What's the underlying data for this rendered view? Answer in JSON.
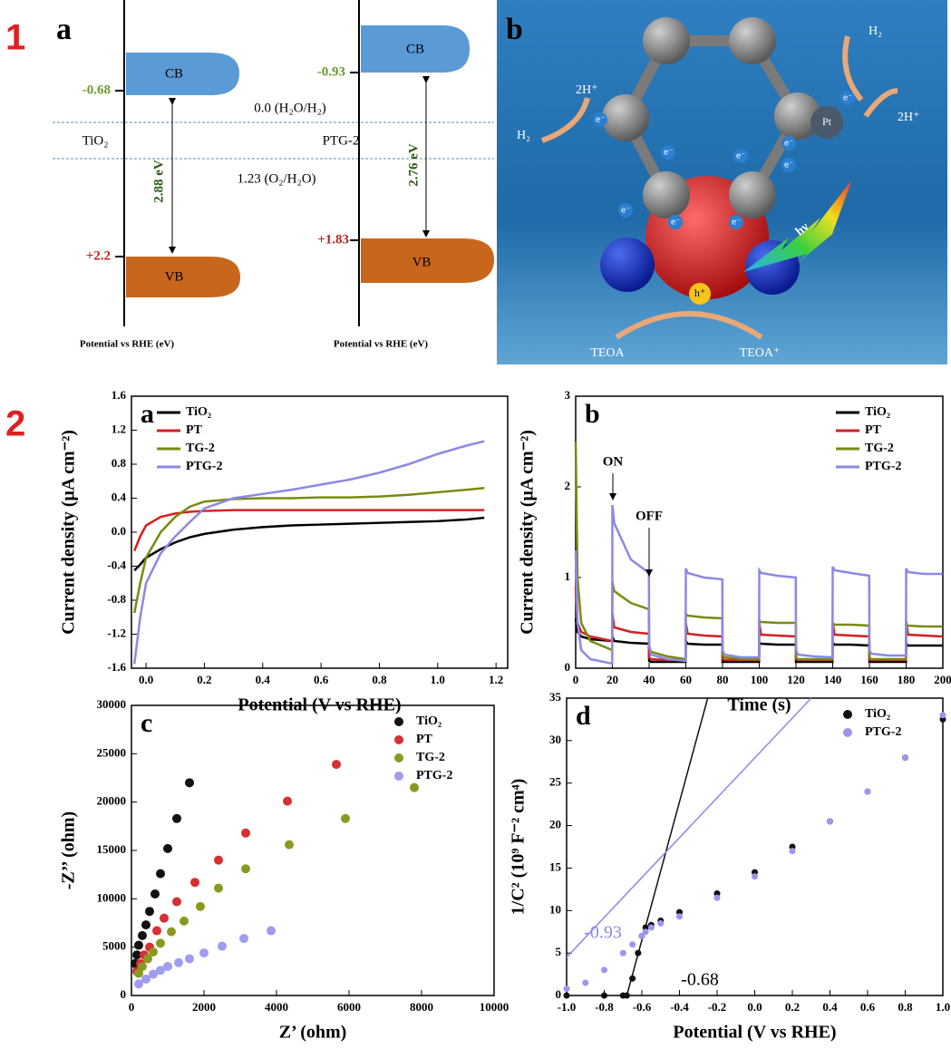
{
  "figure1": {
    "number": "1",
    "panel_a": {
      "label": "a",
      "materials": [
        {
          "name": "TiO₂",
          "cb_label": "CB",
          "vb_label": "VB",
          "cb_potential": "-0.68",
          "vb_potential": "+2.2",
          "gap": "2.88 eV",
          "axis_label": "Potential vs RHE (eV)"
        },
        {
          "name": "PTG-2",
          "cb_label": "CB",
          "vb_label": "VB",
          "cb_potential": "-0.93",
          "vb_potential": "+1.83",
          "gap": "2.76 eV",
          "axis_label": "Potential vs RHE (eV)"
        }
      ],
      "levels": [
        "0.0 (H₂O/H₂)",
        "1.23 (O₂/H₂O)"
      ]
    },
    "panel_b": {
      "label": "b",
      "proton": "2H⁺",
      "hydrogen": "H₂",
      "cocatalyst": "Pt",
      "photon": "hν",
      "hole": "h⁺",
      "donor": "TEOA",
      "donor_oxidized": "TEOA⁺",
      "electron": "e⁻"
    }
  },
  "figure2": {
    "number": "2"
  },
  "chart_data": [
    {
      "type": "line",
      "label": "a",
      "x_label": "Potential (V vs RHE)",
      "y_label": "Current density (μA cm⁻²)",
      "x": [
        -0.04,
        -0.02,
        0,
        0.05,
        0.1,
        0.15,
        0.2,
        0.3,
        0.4,
        0.5,
        0.6,
        0.7,
        0.8,
        0.9,
        1.0,
        1.1,
        1.16
      ],
      "series": [
        {
          "name": "TiO₂",
          "color": "#000000",
          "values": [
            -0.45,
            -0.38,
            -0.3,
            -0.2,
            -0.12,
            -0.06,
            -0.02,
            0.03,
            0.06,
            0.08,
            0.09,
            0.1,
            0.11,
            0.12,
            0.13,
            0.15,
            0.17
          ]
        },
        {
          "name": "PT",
          "color": "#d42020",
          "values": [
            -0.22,
            -0.05,
            0.08,
            0.18,
            0.22,
            0.24,
            0.25,
            0.26,
            0.26,
            0.26,
            0.26,
            0.26,
            0.26,
            0.26,
            0.26,
            0.26,
            0.26
          ]
        },
        {
          "name": "TG-2",
          "color": "#7a8a10",
          "values": [
            -0.95,
            -0.6,
            -0.3,
            0.0,
            0.18,
            0.3,
            0.36,
            0.39,
            0.4,
            0.4,
            0.41,
            0.41,
            0.42,
            0.44,
            0.47,
            0.5,
            0.52
          ]
        },
        {
          "name": "PTG-2",
          "color": "#8c88e8",
          "values": [
            -1.55,
            -1.0,
            -0.6,
            -0.25,
            -0.05,
            0.12,
            0.28,
            0.4,
            0.45,
            0.5,
            0.56,
            0.62,
            0.7,
            0.8,
            0.92,
            1.02,
            1.07
          ]
        }
      ],
      "xlim": [
        -0.05,
        1.24
      ],
      "xticks": [
        {
          "value": 0,
          "label": "0.0"
        },
        0.2,
        0.4,
        0.6,
        0.8,
        {
          "value": 1,
          "label": "1.0"
        },
        1.2
      ],
      "ylim": [
        -1.6,
        1.6
      ],
      "yticks": [
        -1.6,
        -1.2,
        -0.8,
        -0.4,
        {
          "value": 0,
          "label": "0.0"
        },
        0.4,
        0.8,
        1.2,
        1.6
      ],
      "legend": "upper left",
      "annotations": []
    },
    {
      "type": "line",
      "label": "b",
      "x_label": "Time (s)",
      "y_label": "Current density (μA cm⁻²)",
      "x": [
        0,
        1,
        3,
        8,
        19.9,
        20,
        21,
        30,
        39.9,
        40,
        41,
        50,
        59.9,
        60,
        61,
        70,
        79.9,
        80,
        81,
        90,
        99.9,
        100,
        101,
        110,
        119.9,
        120,
        121,
        130,
        139.9,
        140,
        141,
        150,
        159.9,
        160,
        161,
        170,
        179.9,
        180,
        181,
        190,
        199.9
      ],
      "series": [
        {
          "name": "TiO₂",
          "color": "#000000",
          "values": [
            0.55,
            0.4,
            0.35,
            0.32,
            0.3,
            0.35,
            0.3,
            0.28,
            0.27,
            0.08,
            0.07,
            0.07,
            0.07,
            0.3,
            0.27,
            0.26,
            0.26,
            0.07,
            0.07,
            0.07,
            0.07,
            0.28,
            0.27,
            0.26,
            0.26,
            0.07,
            0.07,
            0.07,
            0.07,
            0.28,
            0.26,
            0.26,
            0.25,
            0.07,
            0.07,
            0.07,
            0.07,
            0.27,
            0.25,
            0.25,
            0.25
          ]
        },
        {
          "name": "PT",
          "color": "#d42020",
          "values": [
            0.9,
            0.5,
            0.4,
            0.35,
            0.3,
            0.6,
            0.45,
            0.4,
            0.38,
            0.12,
            0.1,
            0.09,
            0.09,
            0.5,
            0.38,
            0.36,
            0.35,
            0.1,
            0.09,
            0.09,
            0.09,
            0.5,
            0.37,
            0.36,
            0.35,
            0.1,
            0.09,
            0.09,
            0.09,
            0.5,
            0.37,
            0.36,
            0.35,
            0.1,
            0.09,
            0.09,
            0.09,
            0.52,
            0.37,
            0.36,
            0.35
          ]
        },
        {
          "name": "TG-2",
          "color": "#7a8a10",
          "values": [
            2.5,
            1.0,
            0.5,
            0.3,
            0.2,
            0.95,
            0.85,
            0.72,
            0.65,
            0.25,
            0.18,
            0.13,
            0.1,
            0.6,
            0.58,
            0.56,
            0.55,
            0.15,
            0.12,
            0.1,
            0.1,
            0.52,
            0.51,
            0.5,
            0.5,
            0.12,
            0.1,
            0.1,
            0.1,
            0.5,
            0.48,
            0.48,
            0.47,
            0.12,
            0.1,
            0.1,
            0.1,
            0.48,
            0.47,
            0.46,
            0.46
          ]
        },
        {
          "name": "PTG-2",
          "color": "#8c88e8",
          "values": [
            1.3,
            0.5,
            0.2,
            0.1,
            0.05,
            1.8,
            1.6,
            1.2,
            1.05,
            0.25,
            0.15,
            0.1,
            0.08,
            1.1,
            1.05,
            1.0,
            0.98,
            0.2,
            0.15,
            0.12,
            0.12,
            1.08,
            1.05,
            1.02,
            1.0,
            0.2,
            0.15,
            0.13,
            0.12,
            1.12,
            1.08,
            1.05,
            1.02,
            0.2,
            0.16,
            0.14,
            0.14,
            1.1,
            1.06,
            1.04,
            1.04
          ]
        }
      ],
      "xlim": [
        0,
        200
      ],
      "xticks": [
        0,
        20,
        40,
        60,
        80,
        100,
        120,
        140,
        160,
        180,
        200
      ],
      "ylim": [
        0,
        3
      ],
      "yticks": [
        0,
        1,
        2,
        3
      ],
      "legend": "upper right",
      "annotations": [
        {
          "text": "ON",
          "color": "#000000"
        },
        {
          "text": "OFF",
          "color": "#000000"
        }
      ]
    },
    {
      "type": "scatter",
      "label": "c",
      "x_label": "Z’ (ohm)",
      "y_label": "-Z’’ (ohm)",
      "series": [
        {
          "name": "TiO₂",
          "color": "#111111",
          "x": [
            100,
            150,
            200,
            300,
            400,
            500,
            650,
            800,
            1000,
            1250,
            1600
          ],
          "values": [
            3300,
            4200,
            5200,
            6200,
            7300,
            8700,
            10500,
            12600,
            15200,
            18300,
            22000
          ]
        },
        {
          "name": "PT",
          "color": "#d63030",
          "x": [
            150,
            250,
            350,
            500,
            700,
            900,
            1250,
            1750,
            2400,
            3150,
            4300,
            5650
          ],
          "values": [
            2500,
            3300,
            4200,
            5000,
            6700,
            8000,
            9700,
            11700,
            14000,
            16800,
            20100,
            23900
          ]
        },
        {
          "name": "TG-2",
          "color": "#8a9a20",
          "x": [
            200,
            300,
            450,
            600,
            800,
            1100,
            1450,
            1900,
            2400,
            3150,
            4350,
            5900,
            7800
          ],
          "values": [
            2300,
            3000,
            3800,
            4500,
            5400,
            6600,
            7700,
            9200,
            11100,
            13100,
            15600,
            18300,
            21500
          ]
        },
        {
          "name": "PTG-2",
          "color": "#a09cf0",
          "x": [
            200,
            400,
            600,
            800,
            1000,
            1300,
            1600,
            2000,
            2500,
            3100,
            3850
          ],
          "values": [
            1200,
            1700,
            2200,
            2600,
            3000,
            3400,
            3800,
            4400,
            5100,
            5900,
            6700
          ]
        }
      ],
      "xlim": [
        0,
        10000
      ],
      "xticks": [
        0,
        2000,
        4000,
        6000,
        8000,
        10000
      ],
      "ylim": [
        0,
        30000
      ],
      "yticks": [
        0,
        5000,
        10000,
        15000,
        20000,
        25000,
        30000
      ],
      "legend": "upper right",
      "annotations": []
    },
    {
      "type": "scatter",
      "label": "d",
      "x_label": "Potential (V vs RHE)",
      "y_label": "1/C² (10⁹ F⁻² cm⁴)",
      "series": [
        {
          "name": "TiO₂",
          "color": "#111111",
          "x": [
            -1.0,
            -0.8,
            -0.7,
            -0.68,
            -0.65,
            -0.62,
            -0.6,
            -0.58,
            -0.55,
            -0.5,
            -0.4,
            -0.2,
            0,
            0.2,
            0.4,
            0.6,
            0.8,
            1.0
          ],
          "values": [
            0,
            0,
            0,
            0,
            2,
            5,
            7,
            8,
            8.3,
            8.8,
            9.8,
            12,
            14.5,
            17.5,
            20.5,
            24,
            28,
            32.5
          ]
        },
        {
          "name": "PTG-2",
          "color": "#9a96f0",
          "x": [
            -1.0,
            -0.9,
            -0.8,
            -0.7,
            -0.65,
            -0.6,
            -0.58,
            -0.55,
            -0.5,
            -0.4,
            -0.2,
            0,
            0.2,
            0.4,
            0.6,
            0.8,
            1.0
          ],
          "values": [
            0.8,
            1.5,
            3,
            5,
            6,
            7,
            7.5,
            8,
            8.5,
            9.3,
            11.5,
            14,
            17,
            20.5,
            24,
            28,
            33
          ]
        }
      ],
      "fits": [
        {
          "color": "#111111",
          "x": [
            -0.68,
            -0.25
          ],
          "values": [
            0,
            35
          ]
        },
        {
          "color": "#8c88e8",
          "x": [
            -1.0,
            0.3
          ],
          "values": [
            4.5,
            35
          ]
        }
      ],
      "xlim": [
        -1.0,
        1.0
      ],
      "xticks": [
        {
          "value": -1,
          "label": "-1.0"
        },
        -0.8,
        -0.6,
        -0.4,
        -0.2,
        {
          "value": 0,
          "label": "0.0"
        },
        0.2,
        0.4,
        0.6,
        0.8,
        {
          "value": 1,
          "label": "1.0"
        }
      ],
      "ylim": [
        0,
        35
      ],
      "yticks": [
        0,
        5,
        10,
        15,
        20,
        25,
        30,
        35
      ],
      "legend": "upper right",
      "annotations": [
        {
          "text": "-0.93",
          "color": "#8c88e8"
        },
        {
          "text": "-0.68",
          "color": "#000000"
        }
      ]
    }
  ]
}
